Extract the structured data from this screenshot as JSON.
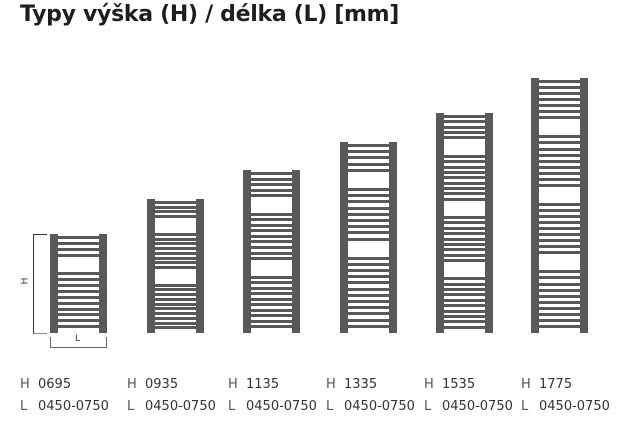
{
  "title": "Typy výška (H) / délka (L) [mm]",
  "dimension_labels": {
    "height": "H",
    "length": "L"
  },
  "models": [
    {
      "h_label": "H",
      "h_value": "0695",
      "l_label": "L",
      "l_value": "0450-0750"
    },
    {
      "h_label": "H",
      "h_value": "0935",
      "l_label": "L",
      "l_value": "0450-0750"
    },
    {
      "h_label": "H",
      "h_value": "1135",
      "l_label": "L",
      "l_value": "0450-0750"
    },
    {
      "h_label": "H",
      "h_value": "1335",
      "l_label": "L",
      "l_value": "0450-0750"
    },
    {
      "h_label": "H",
      "h_value": "1535",
      "l_label": "L",
      "l_value": "0450-0750"
    },
    {
      "h_label": "H",
      "h_value": "1775",
      "l_label": "L",
      "l_value": "0450-0750"
    }
  ],
  "colors": {
    "radiator": "#58595b",
    "text": "#333333"
  }
}
